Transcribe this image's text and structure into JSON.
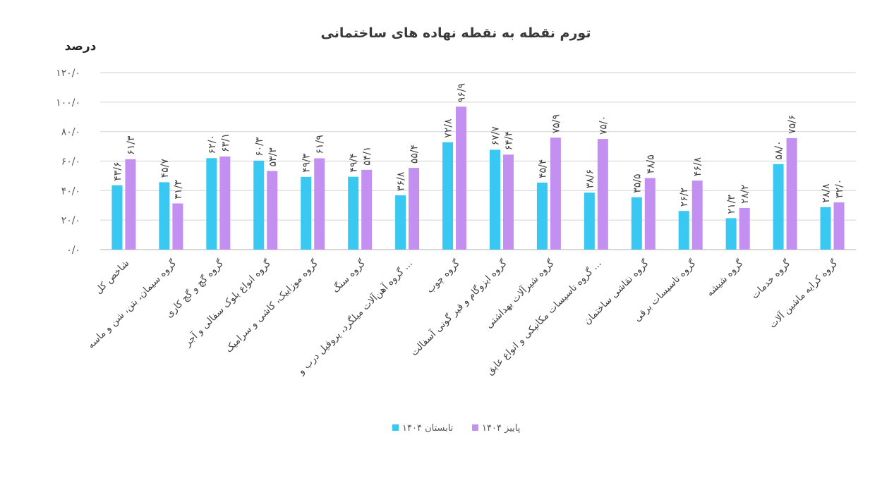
{
  "chart_data": {
    "type": "bar",
    "title": "تورم نقطه به نقطه نهاده های ساختمانی",
    "ylabel": "درصد",
    "xlabel": "",
    "ylim": [
      0,
      120
    ],
    "ytick_labels": [
      "۰/۰",
      "۲۰/۰",
      "۴۰/۰",
      "۶۰/۰",
      "۸۰/۰",
      "۱۰۰/۰",
      "۱۲۰/۰"
    ],
    "grid": true,
    "legend_position": "bottom",
    "colors": {
      "series1": "#39C8F2",
      "series2": "#C38FF0"
    },
    "categories": [
      "شاخص کل",
      "گروه سیمان، بتن، شن و ماسه",
      "گروه گچ و گچ کاری",
      "گروه انواع بلوک سفالی و آجر",
      "گروه موزاییک، کاشی و سرامیک",
      "گروه سنگ",
      "گروه آهن‌آلات میلگرد، پروفیل درب و ...",
      "گروه چوب",
      "گروه ایزوگام و قیر گونی آسفالت",
      "گروه شیرآلات بهداشتی",
      "گروه تاسیسات مکانیکی و انواع عایق ...",
      "گروه نقاشی ساختمان",
      "گروه تاسیسات برقی",
      "گروه شیشه",
      "گروه خدمات",
      "گروه کرایه ماشین آلات"
    ],
    "series": [
      {
        "name": "تابستان ۱۴۰۴",
        "values": [
          43.6,
          45.7,
          62.0,
          60.3,
          49.3,
          49.4,
          36.8,
          72.8,
          67.7,
          45.4,
          38.6,
          35.5,
          26.2,
          21.3,
          58.0,
          28.8
        ],
        "labels": [
          "۴۳/۶",
          "۴۵/۷",
          "۶۲/۰",
          "۶۰/۳",
          "۴۹/۳",
          "۴۹/۴",
          "۳۶/۸",
          "۷۲/۸",
          "۶۷/۷",
          "۴۵/۴",
          "۳۸/۶",
          "۳۵/۵",
          "۲۶/۲",
          "۲۱/۳",
          "۵۸/۰",
          "۲۸/۸"
        ]
      },
      {
        "name": "پاییز ۱۴۰۴",
        "values": [
          61.3,
          31.3,
          63.1,
          53.3,
          61.9,
          54.1,
          55.4,
          96.9,
          64.4,
          75.9,
          75.0,
          48.5,
          46.8,
          28.2,
          75.6,
          32.0
        ],
        "labels": [
          "۶۱/۳",
          "۳۱/۳",
          "۶۳/۱",
          "۵۳/۳",
          "۶۱/۹",
          "۵۴/۱",
          "۵۵/۴",
          "۹۶/۹",
          "۶۴/۴",
          "۷۵/۹",
          "۷۵/۰",
          "۴۸/۵",
          "۴۶/۸",
          "۲۸/۲",
          "۷۵/۶",
          "۳۲/۰"
        ]
      }
    ]
  }
}
